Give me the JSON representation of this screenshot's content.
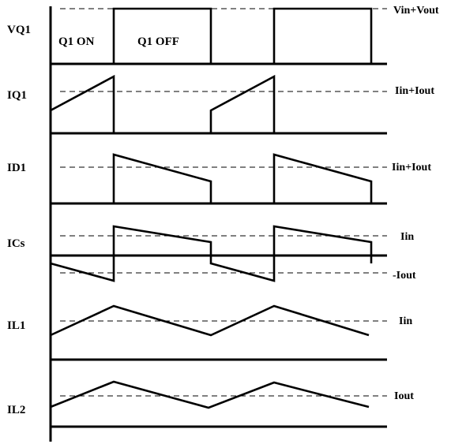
{
  "diagram": {
    "signals": [
      {
        "id": "vq1",
        "name": "VQ1",
        "level_label": "Vin+Vout"
      },
      {
        "id": "iq1",
        "name": "IQ1",
        "level_label": "Iin+Iout"
      },
      {
        "id": "id1",
        "name": "ID1",
        "level_label": "Iin+Iout"
      },
      {
        "id": "ics",
        "name": "ICs",
        "level_label": "Iin",
        "level2_label": "-Iout"
      },
      {
        "id": "il1",
        "name": "IL1",
        "level_label": "Iin"
      },
      {
        "id": "il2",
        "name": "IL2",
        "level_label": "Iout"
      }
    ],
    "phases": {
      "on": "Q1 ON",
      "off": "Q1 OFF"
    }
  }
}
